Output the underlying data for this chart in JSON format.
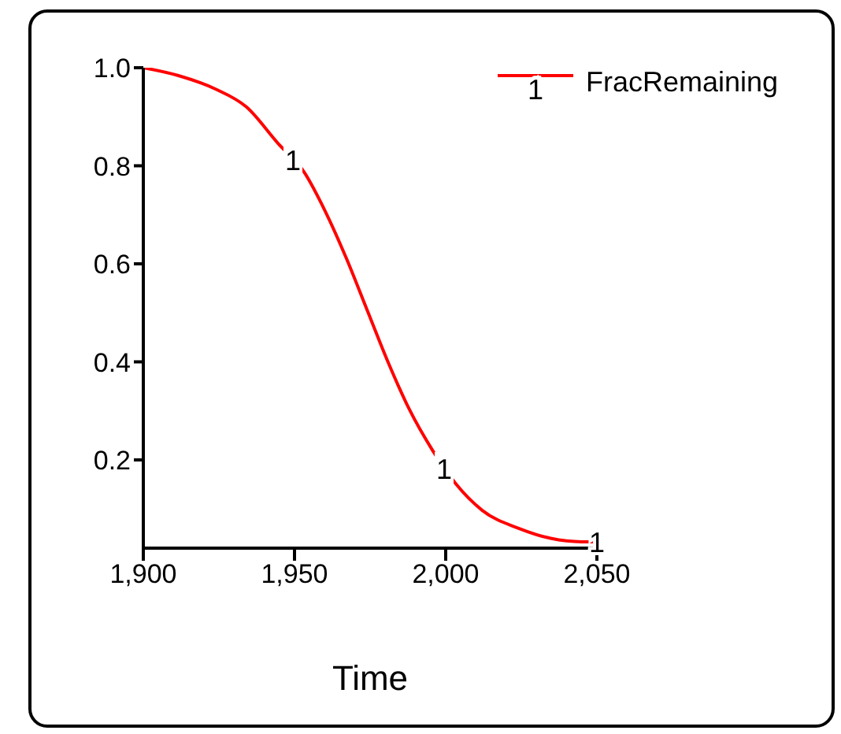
{
  "chart_data": {
    "type": "line",
    "xlabel": "Time",
    "legend": "top right",
    "marker": "none",
    "line_style": "solid",
    "x": [
      1900,
      1911.6,
      1923.7,
      1934.1,
      1944.5,
      1953.2,
      1960.1,
      1967.1,
      1974,
      1980.9,
      1987.9,
      1995.7,
      2003.5,
      2012.1,
      2024.3,
      2034.7,
      2045,
      2050
    ],
    "series": [
      {
        "name": "FracRemaining",
        "color": "#ff0000",
        "values": [
          1.0,
          0.984,
          0.957,
          0.92,
          0.846,
          0.787,
          0.708,
          0.612,
          0.506,
          0.4,
          0.304,
          0.219,
          0.15,
          0.097,
          0.06,
          0.04,
          0.033,
          0.033
        ]
      }
    ],
    "xlim": [
      1900,
      2050
    ],
    "xticks": [
      {
        "value": 1900,
        "label": "1,900"
      },
      {
        "value": 1950,
        "label": "1,950"
      },
      {
        "value": 2000,
        "label": "2,000"
      },
      {
        "value": 2050,
        "label": "2,050"
      }
    ],
    "ylim": [
      0.02,
      1.0
    ],
    "yticks": [
      0.2,
      0.4,
      0.6,
      0.8,
      {
        "value": 1.0,
        "label": "1.0"
      }
    ],
    "grid": false,
    "annotations": [
      "1",
      "1",
      {
        "text": "1",
        "x": 2050,
        "y": 0.033
      }
    ]
  }
}
